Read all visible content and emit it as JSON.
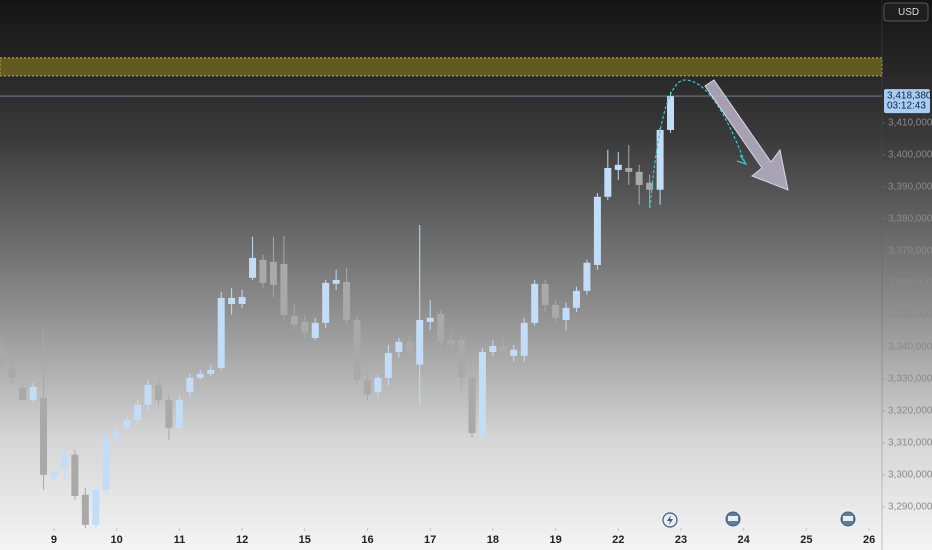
{
  "chart_data": {
    "type": "candlestick",
    "currency": "USD",
    "last_price_label": "3,418,380",
    "countdown": "03:12:43",
    "colors": {
      "up": "#c3dcf8",
      "down": "#a9a9a9"
    },
    "zone": [
      3424700,
      3430300
    ],
    "zone_color": "#6b6420",
    "xlim": [
      -0.861,
      13.206
    ],
    "xticks": [
      {
        "value": 0,
        "label": "9"
      },
      {
        "value": 1,
        "label": "10"
      },
      {
        "value": 2,
        "label": "11"
      },
      {
        "value": 3,
        "label": "12"
      },
      {
        "value": 4,
        "label": "15"
      },
      {
        "value": 5,
        "label": "16"
      },
      {
        "value": 6,
        "label": "17"
      },
      {
        "value": 7,
        "label": "18"
      },
      {
        "value": 8,
        "label": "19"
      },
      {
        "value": 9,
        "label": "22"
      },
      {
        "value": 10,
        "label": "23"
      },
      {
        "value": 11,
        "label": "24"
      },
      {
        "value": 12,
        "label": "25"
      },
      {
        "value": 13,
        "label": "26"
      }
    ],
    "ylim": [
      3283400,
      3448400
    ],
    "yticks": [
      {
        "value": 3290000,
        "label": "3,290,000"
      },
      {
        "value": 3300000,
        "label": "3,300,000"
      },
      {
        "value": 3310000,
        "label": "3,310,000"
      },
      {
        "value": 3320000,
        "label": "3,320,000"
      },
      {
        "value": 3330000,
        "label": "3,330,000"
      },
      {
        "value": 3340000,
        "label": "3,340,000"
      },
      {
        "value": 3350000,
        "label": "3,350,000"
      },
      {
        "value": 3360000,
        "label": "3,360,000"
      },
      {
        "value": 3370000,
        "label": "3,370,000"
      },
      {
        "value": 3380000,
        "label": "3,380,000"
      },
      {
        "value": 3390000,
        "label": "3,390,000"
      },
      {
        "value": 3400000,
        "label": "3,400,000"
      },
      {
        "value": 3410000,
        "label": "3,410,000"
      }
    ],
    "x": [
      -0.833,
      -0.667,
      -0.5,
      -0.333,
      -0.167,
      0,
      0.167,
      0.333,
      0.5,
      0.667,
      0.833,
      1,
      1.167,
      1.333,
      1.5,
      1.667,
      1.833,
      2,
      2.167,
      2.333,
      2.5,
      2.667,
      2.833,
      3,
      3.167,
      3.333,
      3.5,
      3.667,
      3.833,
      4,
      4.167,
      4.333,
      4.5,
      4.667,
      4.833,
      5,
      5.167,
      5.333,
      5.5,
      5.667,
      5.833,
      6,
      6.167,
      6.333,
      6.5,
      6.667,
      6.833,
      7,
      7.167,
      7.333,
      7.5,
      7.667,
      7.833,
      8,
      8.167,
      8.333,
      8.5,
      8.667,
      8.833,
      9,
      9.167,
      9.333,
      9.5,
      9.667,
      9.833
    ],
    "open": [
      3339700,
      3333400,
      3327200,
      3323400,
      3324100,
      3299400,
      3302200,
      3306300,
      3293800,
      3284400,
      3295300,
      3311600,
      3314700,
      3317200,
      3321900,
      3328100,
      3323400,
      3314700,
      3325900,
      3330300,
      3331600,
      3333400,
      3353400,
      3353400,
      3361600,
      3367200,
      3366600,
      3365900,
      3349700,
      3347800,
      3342800,
      3347500,
      3359700,
      3360300,
      3348400,
      3329700,
      3325900,
      3330300,
      3338400,
      3341600,
      3334400,
      3347800,
      3350300,
      3342200,
      3342200,
      3330300,
      3312500,
      3338400,
      3340300,
      3337200,
      3337200,
      3347500,
      3359700,
      3353100,
      3348400,
      3352200,
      3357500,
      3365600,
      3386900,
      3395300,
      3395900,
      3394700,
      3391300,
      3389100,
      3407800
    ],
    "high": [
      3343800,
      3335900,
      3328100,
      3328800,
      3345300,
      3302200,
      3307800,
      3307800,
      3295900,
      3296900,
      3312500,
      3315600,
      3318800,
      3323400,
      3329700,
      3330300,
      3325000,
      3325000,
      3331600,
      3332800,
      3334400,
      3357200,
      3358400,
      3357800,
      3374400,
      3368800,
      3374400,
      3374700,
      3353100,
      3350000,
      3349100,
      3360900,
      3364100,
      3364700,
      3350000,
      3332200,
      3331300,
      3340600,
      3342800,
      3343400,
      3378100,
      3354700,
      3351600,
      3344700,
      3343800,
      3332200,
      3339700,
      3342200,
      3342200,
      3340600,
      3349100,
      3360900,
      3360900,
      3354700,
      3353800,
      3358800,
      3367200,
      3388100,
      3401600,
      3400900,
      3403100,
      3396900,
      3393800,
      3408400,
      3419700
    ],
    "low": [
      3332800,
      3328100,
      3323400,
      3322800,
      3295300,
      3298400,
      3298400,
      3292200,
      3283400,
      3283400,
      3293800,
      3310300,
      3313400,
      3315600,
      3320300,
      3321900,
      3310900,
      3310900,
      3324400,
      3329700,
      3330900,
      3332800,
      3350000,
      3352200,
      3360900,
      3358400,
      3355600,
      3348400,
      3345300,
      3342800,
      3342200,
      3345900,
      3357800,
      3346900,
      3328100,
      3323400,
      3324100,
      3328100,
      3336600,
      3335300,
      3321900,
      3345300,
      3339100,
      3339100,
      3326600,
      3311600,
      3311600,
      3337200,
      3336600,
      3335300,
      3335300,
      3346600,
      3350900,
      3347500,
      3345300,
      3350900,
      3356300,
      3364100,
      3385900,
      3392200,
      3390600,
      3384400,
      3383400,
      3384400,
      3406900
    ],
    "close": [
      3334400,
      3330300,
      3323400,
      3327500,
      3300000,
      3300900,
      3306300,
      3293400,
      3284400,
      3295300,
      3311600,
      3313400,
      3317200,
      3321900,
      3328100,
      3323400,
      3314700,
      3323400,
      3330300,
      3331600,
      3332800,
      3355300,
      3355300,
      3355600,
      3367800,
      3360000,
      3359400,
      3350000,
      3346900,
      3344400,
      3347500,
      3360000,
      3360900,
      3348400,
      3329700,
      3325000,
      3330300,
      3338100,
      3341600,
      3336900,
      3348400,
      3349100,
      3341600,
      3340600,
      3330300,
      3313100,
      3338400,
      3340300,
      3338400,
      3339100,
      3347500,
      3359700,
      3353100,
      3349100,
      3352200,
      3357500,
      3366300,
      3386900,
      3395900,
      3396900,
      3394700,
      3390600,
      3389100,
      3407800,
      3418380
    ]
  }
}
